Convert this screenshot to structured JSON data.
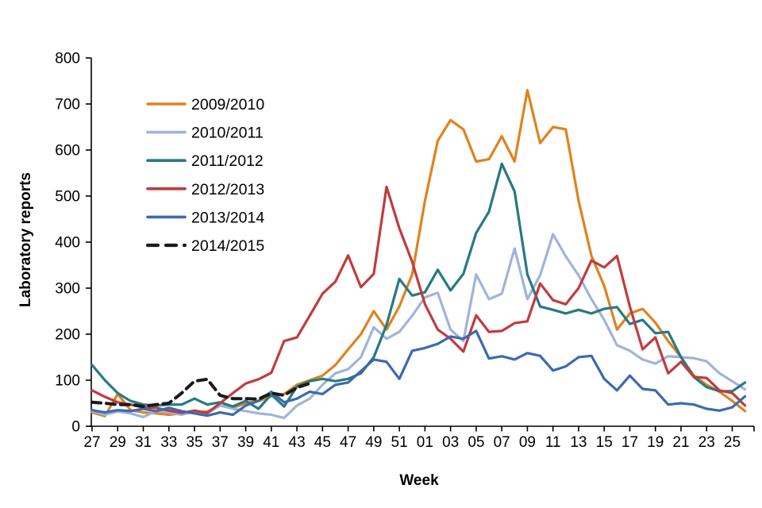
{
  "figure": {
    "xlabel": "Week",
    "ylabel": "Laboratory reports"
  },
  "chart_data": {
    "type": "line",
    "title": "",
    "xlabel": "Week",
    "ylabel": "Laboratory reports",
    "ylim": [
      0,
      800
    ],
    "ytick_step": 100,
    "grid": false,
    "legend_position": "upper-left-inside",
    "xtick_labels": [
      "27",
      "29",
      "31",
      "33",
      "35",
      "37",
      "39",
      "41",
      "43",
      "45",
      "47",
      "49",
      "51",
      "01",
      "03",
      "05",
      "07",
      "09",
      "11",
      "13",
      "15",
      "17",
      "19",
      "21",
      "23",
      "25"
    ],
    "weeks": [
      "27",
      "28",
      "29",
      "30",
      "31",
      "32",
      "33",
      "34",
      "35",
      "36",
      "37",
      "38",
      "39",
      "40",
      "41",
      "42",
      "43",
      "44",
      "45",
      "46",
      "47",
      "48",
      "49",
      "50",
      "51",
      "52",
      "01",
      "02",
      "03",
      "04",
      "05",
      "06",
      "07",
      "08",
      "09",
      "10",
      "11",
      "12",
      "13",
      "14",
      "15",
      "16",
      "17",
      "18",
      "19",
      "20",
      "21",
      "22",
      "23",
      "24",
      "25",
      "26"
    ],
    "series": [
      {
        "name": "2009/2010",
        "color": "#E0821E",
        "style": "solid",
        "values": [
          30,
          22,
          70,
          35,
          30,
          28,
          25,
          28,
          30,
          32,
          45,
          40,
          50,
          55,
          65,
          70,
          90,
          100,
          110,
          133,
          167,
          200,
          250,
          210,
          260,
          330,
          490,
          620,
          665,
          645,
          575,
          580,
          630,
          575,
          730,
          615,
          650,
          645,
          490,
          370,
          305,
          210,
          245,
          255,
          225,
          185,
          150,
          110,
          90,
          75,
          55,
          33
        ]
      },
      {
        "name": "2010/2011",
        "color": "#9FB4DA",
        "style": "solid",
        "values": [
          33,
          25,
          32,
          28,
          20,
          33,
          30,
          25,
          32,
          28,
          45,
          38,
          33,
          28,
          25,
          18,
          45,
          60,
          90,
          115,
          124,
          150,
          215,
          190,
          205,
          240,
          280,
          290,
          210,
          185,
          330,
          276,
          288,
          386,
          276,
          328,
          417,
          369,
          328,
          276,
          231,
          176,
          164,
          145,
          136,
          152,
          150,
          148,
          141,
          115,
          98,
          80
        ]
      },
      {
        "name": "2011/2012",
        "color": "#277984",
        "style": "solid",
        "values": [
          133,
          100,
          72,
          55,
          47,
          45,
          47,
          47,
          60,
          47,
          52,
          43,
          55,
          38,
          69,
          43,
          86,
          98,
          103,
          98,
          103,
          115,
          150,
          220,
          320,
          284,
          291,
          340,
          295,
          331,
          420,
          466,
          570,
          510,
          330,
          260,
          253,
          245,
          253,
          245,
          255,
          259,
          222,
          231,
          202,
          205,
          150,
          107,
          85,
          76,
          76,
          95
        ]
      },
      {
        "name": "2012/2013",
        "color": "#C13B3D",
        "style": "solid",
        "values": [
          78,
          64,
          52,
          47,
          41,
          40,
          34,
          29,
          34,
          29,
          50,
          72,
          93,
          102,
          116,
          185,
          193,
          240,
          288,
          314,
          371,
          302,
          331,
          520,
          430,
          357,
          265,
          210,
          190,
          162,
          241,
          205,
          207,
          224,
          228,
          310,
          274,
          265,
          300,
          360,
          345,
          370,
          260,
          167,
          193,
          115,
          140,
          107,
          105,
          78,
          72,
          45
        ]
      },
      {
        "name": "2013/2014",
        "color": "#3D6AAE",
        "style": "solid",
        "values": [
          35,
          30,
          35,
          33,
          38,
          33,
          40,
          33,
          28,
          23,
          30,
          25,
          45,
          55,
          75,
          52,
          60,
          75,
          70,
          90,
          95,
          120,
          145,
          140,
          103,
          164,
          170,
          179,
          195,
          190,
          207,
          147,
          152,
          145,
          159,
          153,
          121,
          130,
          150,
          153,
          103,
          78,
          110,
          81,
          78,
          47,
          50,
          47,
          38,
          34,
          41,
          65
        ]
      },
      {
        "name": "2014/2015",
        "color": "#1A1A1A",
        "style": "dashed",
        "values": [
          52,
          50,
          47,
          47,
          43,
          47,
          50,
          72,
          98,
          102,
          67,
          60,
          60,
          59,
          72,
          67,
          84,
          93
        ]
      }
    ]
  }
}
